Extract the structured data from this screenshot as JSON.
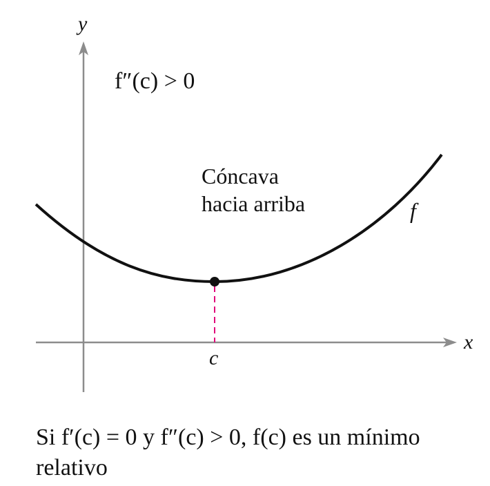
{
  "axes": {
    "x_label": "x",
    "y_label": "y",
    "c_label": "c"
  },
  "annotations": {
    "second_derivative": "f″(c) > 0",
    "concavity_line1": "Cóncava",
    "concavity_line2": "hacia arriba",
    "curve_label": "f"
  },
  "caption": {
    "line1": "Si f′(c) = 0 y f″(c) > 0, f(c) es un mínimo",
    "line2": "relativo"
  },
  "colors": {
    "axis": "#8c8c8c",
    "curve": "#111111",
    "dashed_marker": "#e0007a",
    "point": "#111111"
  }
}
